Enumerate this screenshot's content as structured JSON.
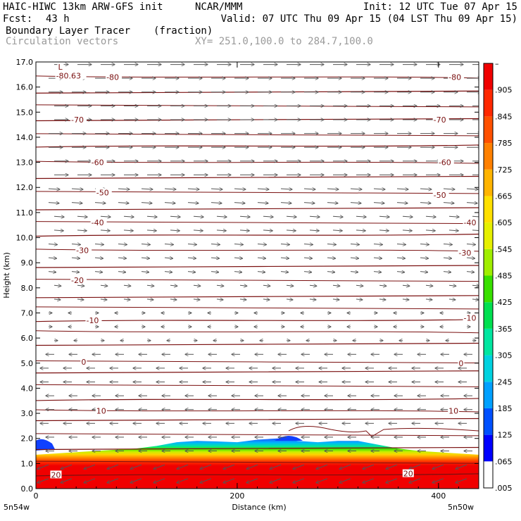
{
  "header": {
    "model": "HAIC-HIWC 13km ARW-GFS init",
    "org": "NCAR/MMM",
    "init": "Init: 12 UTC Tue 07 Apr 15",
    "fcst_label": "Fcst:",
    "fcst_value": "43 h",
    "valid": "Valid: 07 UTC Thu 09 Apr 15 (04 LST Thu 09 Apr 15)",
    "field": "Boundary Layer Tracer",
    "field_units": "(fraction)",
    "overlay": "Circulation vectors",
    "xy": "XY= 251.0,100.0 to 284.7,100.0"
  },
  "chart_data": {
    "type": "heatmap",
    "title": "Boundary Layer Tracer",
    "units": "(fraction)",
    "xlabel": "Distance (km)",
    "ylabel": "Height (km)",
    "xlim": [
      0,
      440
    ],
    "ylim": [
      0,
      17
    ],
    "x_ticks": [
      "0",
      "200",
      "400"
    ],
    "x_tick_values": [
      0,
      200,
      400
    ],
    "x_end_labels": [
      "5n54w",
      "5n50w"
    ],
    "y_ticks": [
      "0.0",
      "1.0",
      "2.0",
      "3.0",
      "4.0",
      "5.0",
      "6.0",
      "7.0",
      "8.0",
      "9.0",
      "10.0",
      "11.0",
      "12.0",
      "13.0",
      "14.0",
      "15.0",
      "16.0",
      "17.0"
    ],
    "y_tick_values": [
      0,
      1,
      2,
      3,
      4,
      5,
      6,
      7,
      8,
      9,
      10,
      11,
      12,
      13,
      14,
      15,
      16,
      17
    ],
    "colorbar": {
      "labels": [
        ".005",
        ".065",
        ".125",
        ".185",
        ".245",
        ".305",
        ".365",
        ".425",
        ".485",
        ".545",
        ".605",
        ".665",
        ".725",
        ".785",
        ".845",
        ".905",
        "–"
      ],
      "colors": [
        "#ffffff",
        "#0000ff",
        "#0050ff",
        "#00a0ff",
        "#00d2e0",
        "#00e6a0",
        "#00e050",
        "#38e000",
        "#a0ee00",
        "#e6f000",
        "#ffe000",
        "#ffb400",
        "#ff8000",
        "#ff5000",
        "#ff2800",
        "#f00000"
      ]
    },
    "tracer_top_km": [
      1.35,
      1.4,
      1.45,
      1.5,
      1.55,
      1.6,
      1.7,
      1.85,
      1.9,
      1.88,
      1.85,
      1.95,
      2.0,
      1.9,
      1.85,
      1.9,
      1.9,
      1.75,
      1.6,
      1.5,
      1.45,
      1.4,
      1.35
    ],
    "temperature_contours_C": {
      "levels": [
        20,
        10,
        0,
        -10,
        -20,
        -30,
        -40,
        -50,
        -60,
        -70,
        -80
      ],
      "labels": [
        {
          "text": "20",
          "x": 15,
          "y": 0.55
        },
        {
          "text": "20",
          "x": 365,
          "y": 0.6
        },
        {
          "text": "10",
          "x": 60,
          "y": 3.1
        },
        {
          "text": "10",
          "x": 410,
          "y": 3.1
        },
        {
          "text": "0",
          "x": 45,
          "y": 5.05
        },
        {
          "text": "0",
          "x": 420,
          "y": 5.0
        },
        {
          "text": "-10",
          "x": 50,
          "y": 6.7
        },
        {
          "text": "-10",
          "x": 425,
          "y": 6.8
        },
        {
          "text": "-20",
          "x": 35,
          "y": 8.3
        },
        {
          "text": "-30",
          "x": 40,
          "y": 9.5
        },
        {
          "text": "-30",
          "x": 420,
          "y": 9.4
        },
        {
          "text": "-40",
          "x": 55,
          "y": 10.6
        },
        {
          "text": "-40",
          "x": 425,
          "y": 10.6
        },
        {
          "text": "-50",
          "x": 60,
          "y": 11.8
        },
        {
          "text": "-50",
          "x": 395,
          "y": 11.7
        },
        {
          "text": "-60",
          "x": 55,
          "y": 13.0
        },
        {
          "text": "-60",
          "x": 400,
          "y": 13.0
        },
        {
          "text": "-70",
          "x": 35,
          "y": 14.7
        },
        {
          "text": "-70",
          "x": 395,
          "y": 14.7
        },
        {
          "text": "-80",
          "x": 70,
          "y": 16.4
        },
        {
          "text": "-80",
          "x": 410,
          "y": 16.4
        },
        {
          "text": "-80.63",
          "x": 20,
          "y": 16.45
        },
        {
          "text": "L",
          "x": 22,
          "y": 16.8
        }
      ],
      "isotherm_heights_km": [
        0.55,
        1.05,
        1.6,
        2.15,
        2.75,
        3.1,
        3.55,
        4.1,
        4.65,
        5.05,
        5.75,
        6.25,
        6.7,
        7.2,
        7.65,
        8.3,
        8.85,
        9.5,
        10.1,
        10.6,
        11.15,
        11.8,
        12.4,
        13.0,
        13.65,
        14.1,
        14.7,
        15.25,
        15.8,
        16.4
      ]
    },
    "wind_vectors": {
      "easterly_below_km": 7.0,
      "westerly_above_km": 7.0,
      "strong_westerly_above_km": 12.5
    }
  }
}
